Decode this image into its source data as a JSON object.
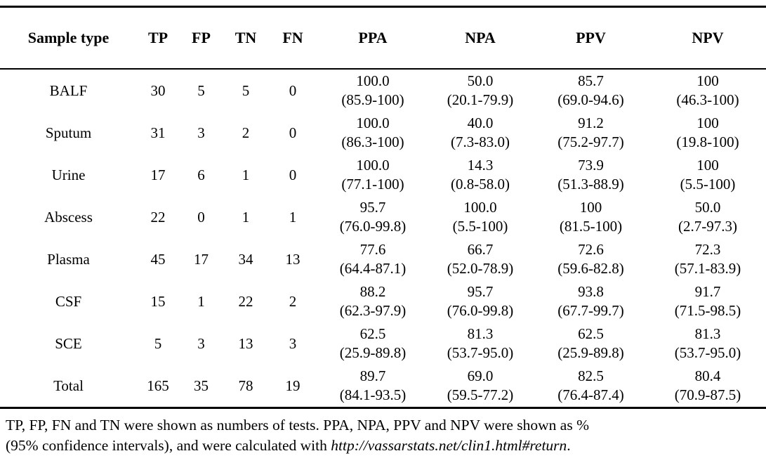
{
  "table": {
    "columns": [
      "Sample type",
      "TP",
      "FP",
      "TN",
      "FN",
      "PPA",
      "NPA",
      "PPV",
      "NPV"
    ],
    "rows": [
      {
        "sample": "BALF",
        "counts": [
          "30",
          "5",
          "5",
          "0"
        ],
        "stats": [
          [
            "100.0",
            "(85.9-100)"
          ],
          [
            "50.0",
            "(20.1-79.9)"
          ],
          [
            "85.7",
            "(69.0-94.6)"
          ],
          [
            "100",
            "(46.3-100)"
          ]
        ]
      },
      {
        "sample": "Sputum",
        "counts": [
          "31",
          "3",
          "2",
          "0"
        ],
        "stats": [
          [
            "100.0",
            "(86.3-100)"
          ],
          [
            "40.0",
            "(7.3-83.0)"
          ],
          [
            "91.2",
            "(75.2-97.7)"
          ],
          [
            "100",
            "(19.8-100)"
          ]
        ]
      },
      {
        "sample": "Urine",
        "counts": [
          "17",
          "6",
          "1",
          "0"
        ],
        "stats": [
          [
            "100.0",
            "(77.1-100)"
          ],
          [
            "14.3",
            "(0.8-58.0)"
          ],
          [
            "73.9",
            "(51.3-88.9)"
          ],
          [
            "100",
            "(5.5-100)"
          ]
        ]
      },
      {
        "sample": "Abscess",
        "counts": [
          "22",
          "0",
          "1",
          "1"
        ],
        "stats": [
          [
            "95.7",
            "(76.0-99.8)"
          ],
          [
            "100.0",
            "(5.5-100)"
          ],
          [
            "100",
            "(81.5-100)"
          ],
          [
            "50.0",
            "(2.7-97.3)"
          ]
        ]
      },
      {
        "sample": "Plasma",
        "counts": [
          "45",
          "17",
          "34",
          "13"
        ],
        "stats": [
          [
            "77.6",
            "(64.4-87.1)"
          ],
          [
            "66.7",
            "(52.0-78.9)"
          ],
          [
            "72.6",
            "(59.6-82.8)"
          ],
          [
            "72.3",
            "(57.1-83.9)"
          ]
        ]
      },
      {
        "sample": "CSF",
        "counts": [
          "15",
          "1",
          "22",
          "2"
        ],
        "stats": [
          [
            "88.2",
            "(62.3-97.9)"
          ],
          [
            "95.7",
            "(76.0-99.8)"
          ],
          [
            "93.8",
            "(67.7-99.7)"
          ],
          [
            "91.7",
            "(71.5-98.5)"
          ]
        ]
      },
      {
        "sample": "SCE",
        "counts": [
          "5",
          "3",
          "13",
          "3"
        ],
        "stats": [
          [
            "62.5",
            "(25.9-89.8)"
          ],
          [
            "81.3",
            "(53.7-95.0)"
          ],
          [
            "62.5",
            "(25.9-89.8)"
          ],
          [
            "81.3",
            "(53.7-95.0)"
          ]
        ]
      },
      {
        "sample": "Total",
        "counts": [
          "165",
          "35",
          "78",
          "19"
        ],
        "stats": [
          [
            "89.7",
            "(84.1-93.5)"
          ],
          [
            "69.0",
            "(59.5-77.2)"
          ],
          [
            "82.5",
            "(76.4-87.4)"
          ],
          [
            "80.4",
            "(70.9-87.5)"
          ]
        ]
      }
    ]
  },
  "footnote": {
    "line1": "TP, FP, FN and TN were shown as numbers of tests. PPA, NPA, PPV and NPV were shown as %",
    "line2_prefix": "(95% confidence intervals), and were calculated with ",
    "url": "http://vassarstats.net/clin1.html#return",
    "suffix": "."
  }
}
